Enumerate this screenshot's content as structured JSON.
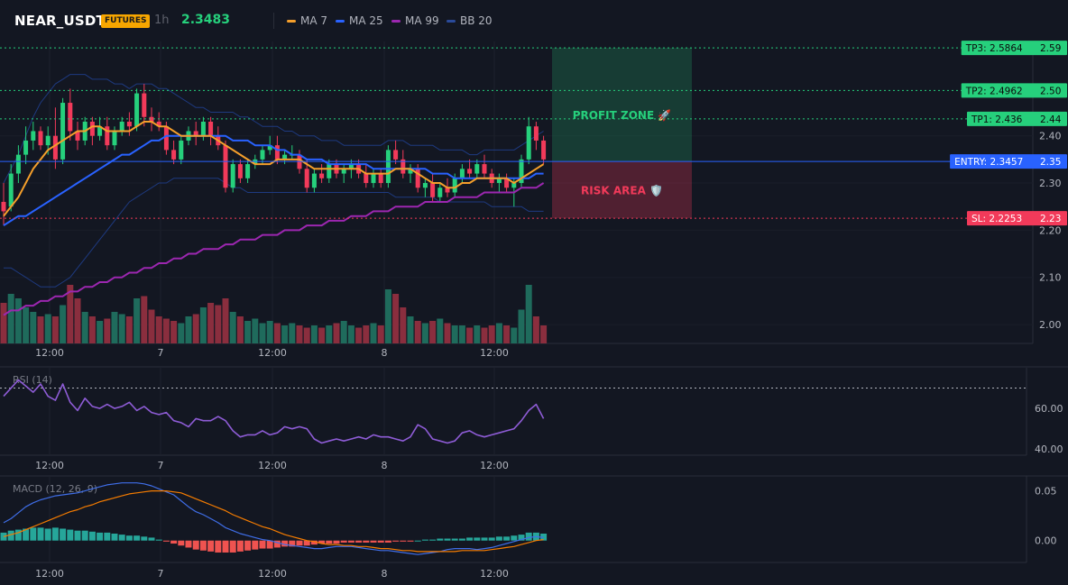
{
  "header": {
    "symbol": "NEAR_USDT",
    "badge": "FUTURES",
    "timeframe": "1h",
    "last_price": "2.3483",
    "legend": [
      {
        "name": "MA 7",
        "color": "#f59f2b"
      },
      {
        "name": "MA 25",
        "color": "#2962ff"
      },
      {
        "name": "MA 99",
        "color": "#9c27b0"
      },
      {
        "name": "BB 20",
        "color": "#2a4a9a"
      }
    ]
  },
  "colors": {
    "bull": "#26d07c",
    "bear": "#f23a5a",
    "vol_bull": "#1f6b5c",
    "vol_bear": "#8a2e3e",
    "ma7": "#f59f2b",
    "ma25": "#2962ff",
    "ma99": "#9c27b0",
    "bb": "#1e3a80",
    "rsi": "#8e5cd6",
    "macd": "#3f6ee8",
    "signal": "#f57c00",
    "hist_pos": "#26a69a",
    "hist_neg": "#ef5350"
  },
  "trade": {
    "profit_label": "PROFIT ZONE 🚀",
    "risk_label": "RISK AREA 🛡️",
    "tp3": {
      "tag": "TP3: 2.5864",
      "axis": "2.59",
      "value": 2.5864
    },
    "tp2": {
      "tag": "TP2: 2.4962",
      "axis": "2.50",
      "value": 2.4962
    },
    "tp1": {
      "tag": "TP1: 2.436",
      "axis": "2.44",
      "value": 2.436
    },
    "entry": {
      "tag": "ENTRY: 2.3457",
      "axis": "2.35",
      "value": 2.3457
    },
    "sl": {
      "tag": "SL: 2.2253",
      "axis": "2.23",
      "value": 2.2253
    }
  },
  "chart_data": [
    {
      "type": "candlestick",
      "title": "NEAR_USDT 1h",
      "x_labels": [
        "12:00",
        "7",
        "12:00",
        "8",
        "12:00"
      ],
      "y_ticks": [
        "2.40",
        "2.30",
        "2.20",
        "2.10",
        "2.00"
      ],
      "y_tick_values": [
        2.4,
        2.3,
        2.2,
        2.1,
        2.0
      ],
      "ylim": [
        1.96,
        2.6
      ],
      "ohlc": [
        [
          2.26,
          2.3,
          2.21,
          2.24
        ],
        [
          2.25,
          2.34,
          2.24,
          2.32
        ],
        [
          2.32,
          2.38,
          2.3,
          2.36
        ],
        [
          2.36,
          2.42,
          2.34,
          2.39
        ],
        [
          2.39,
          2.43,
          2.37,
          2.41
        ],
        [
          2.41,
          2.42,
          2.37,
          2.38
        ],
        [
          2.38,
          2.42,
          2.36,
          2.4
        ],
        [
          2.4,
          2.46,
          2.33,
          2.35
        ],
        [
          2.35,
          2.48,
          2.34,
          2.47
        ],
        [
          2.47,
          2.5,
          2.39,
          2.41
        ],
        [
          2.41,
          2.43,
          2.37,
          2.39
        ],
        [
          2.39,
          2.44,
          2.38,
          2.43
        ],
        [
          2.43,
          2.44,
          2.38,
          2.4
        ],
        [
          2.4,
          2.44,
          2.39,
          2.42
        ],
        [
          2.42,
          2.44,
          2.37,
          2.38
        ],
        [
          2.38,
          2.42,
          2.37,
          2.41
        ],
        [
          2.41,
          2.44,
          2.4,
          2.43
        ],
        [
          2.43,
          2.45,
          2.4,
          2.42
        ],
        [
          2.42,
          2.5,
          2.41,
          2.49
        ],
        [
          2.49,
          2.51,
          2.42,
          2.44
        ],
        [
          2.44,
          2.46,
          2.41,
          2.43
        ],
        [
          2.43,
          2.45,
          2.41,
          2.42
        ],
        [
          2.42,
          2.43,
          2.36,
          2.37
        ],
        [
          2.37,
          2.39,
          2.34,
          2.35
        ],
        [
          2.35,
          2.4,
          2.34,
          2.39
        ],
        [
          2.39,
          2.42,
          2.38,
          2.41
        ],
        [
          2.41,
          2.43,
          2.38,
          2.4
        ],
        [
          2.4,
          2.44,
          2.39,
          2.43
        ],
        [
          2.43,
          2.44,
          2.38,
          2.4
        ],
        [
          2.4,
          2.42,
          2.37,
          2.38
        ],
        [
          2.38,
          2.39,
          2.28,
          2.29
        ],
        [
          2.29,
          2.35,
          2.28,
          2.34
        ],
        [
          2.34,
          2.35,
          2.3,
          2.31
        ],
        [
          2.31,
          2.35,
          2.3,
          2.34
        ],
        [
          2.34,
          2.36,
          2.33,
          2.35
        ],
        [
          2.35,
          2.38,
          2.34,
          2.37
        ],
        [
          2.37,
          2.4,
          2.36,
          2.38
        ],
        [
          2.38,
          2.4,
          2.34,
          2.35
        ],
        [
          2.35,
          2.37,
          2.34,
          2.36
        ],
        [
          2.36,
          2.38,
          2.35,
          2.36
        ],
        [
          2.36,
          2.37,
          2.32,
          2.33
        ],
        [
          2.33,
          2.35,
          2.28,
          2.29
        ],
        [
          2.29,
          2.33,
          2.28,
          2.32
        ],
        [
          2.32,
          2.34,
          2.3,
          2.31
        ],
        [
          2.31,
          2.35,
          2.3,
          2.34
        ],
        [
          2.34,
          2.35,
          2.31,
          2.32
        ],
        [
          2.32,
          2.34,
          2.3,
          2.33
        ],
        [
          2.33,
          2.35,
          2.31,
          2.34
        ],
        [
          2.34,
          2.35,
          2.31,
          2.32
        ],
        [
          2.32,
          2.34,
          2.29,
          2.3
        ],
        [
          2.3,
          2.33,
          2.29,
          2.32
        ],
        [
          2.32,
          2.33,
          2.29,
          2.3
        ],
        [
          2.3,
          2.38,
          2.29,
          2.37
        ],
        [
          2.37,
          2.39,
          2.34,
          2.35
        ],
        [
          2.35,
          2.37,
          2.31,
          2.32
        ],
        [
          2.32,
          2.34,
          2.3,
          2.33
        ],
        [
          2.33,
          2.34,
          2.28,
          2.29
        ],
        [
          2.29,
          2.31,
          2.27,
          2.3
        ],
        [
          2.3,
          2.32,
          2.26,
          2.27
        ],
        [
          2.27,
          2.3,
          2.26,
          2.29
        ],
        [
          2.29,
          2.31,
          2.27,
          2.28
        ],
        [
          2.28,
          2.32,
          2.27,
          2.31
        ],
        [
          2.31,
          2.34,
          2.3,
          2.33
        ],
        [
          2.33,
          2.35,
          2.31,
          2.32
        ],
        [
          2.32,
          2.35,
          2.31,
          2.34
        ],
        [
          2.34,
          2.36,
          2.31,
          2.32
        ],
        [
          2.32,
          2.33,
          2.29,
          2.3
        ],
        [
          2.3,
          2.32,
          2.28,
          2.31
        ],
        [
          2.31,
          2.32,
          2.28,
          2.29
        ],
        [
          2.29,
          2.31,
          2.25,
          2.3
        ],
        [
          2.3,
          2.36,
          2.29,
          2.35
        ],
        [
          2.35,
          2.44,
          2.34,
          2.42
        ],
        [
          2.42,
          2.43,
          2.37,
          2.39
        ],
        [
          2.39,
          2.4,
          2.34,
          2.35
        ]
      ],
      "volume": [
        18,
        22,
        20,
        16,
        14,
        12,
        13,
        12,
        17,
        26,
        20,
        14,
        12,
        10,
        11,
        14,
        13,
        12,
        20,
        21,
        15,
        12,
        11,
        10,
        9,
        12,
        13,
        16,
        18,
        17,
        20,
        14,
        12,
        10,
        11,
        9,
        10,
        9,
        8,
        9,
        8,
        7,
        8,
        7,
        8,
        9,
        10,
        8,
        7,
        8,
        9,
        8,
        24,
        22,
        16,
        12,
        10,
        9,
        10,
        11,
        9,
        8,
        8,
        7,
        8,
        7,
        8,
        9,
        8,
        7,
        15,
        26,
        12,
        8
      ],
      "ma7": [
        2.23,
        2.25,
        2.27,
        2.3,
        2.33,
        2.35,
        2.37,
        2.38,
        2.39,
        2.4,
        2.41,
        2.41,
        2.42,
        2.42,
        2.41,
        2.41,
        2.41,
        2.41,
        2.42,
        2.43,
        2.43,
        2.42,
        2.42,
        2.41,
        2.4,
        2.4,
        2.4,
        2.4,
        2.4,
        2.39,
        2.38,
        2.37,
        2.36,
        2.35,
        2.34,
        2.34,
        2.34,
        2.35,
        2.35,
        2.35,
        2.35,
        2.34,
        2.33,
        2.33,
        2.33,
        2.33,
        2.33,
        2.33,
        2.33,
        2.32,
        2.32,
        2.32,
        2.32,
        2.33,
        2.33,
        2.33,
        2.32,
        2.31,
        2.3,
        2.3,
        2.29,
        2.29,
        2.3,
        2.3,
        2.31,
        2.31,
        2.31,
        2.31,
        2.31,
        2.3,
        2.31,
        2.32,
        2.33,
        2.34
      ],
      "ma25": [
        2.21,
        2.22,
        2.23,
        2.23,
        2.24,
        2.25,
        2.26,
        2.27,
        2.28,
        2.29,
        2.3,
        2.31,
        2.32,
        2.33,
        2.34,
        2.35,
        2.36,
        2.36,
        2.37,
        2.38,
        2.39,
        2.39,
        2.4,
        2.4,
        2.4,
        2.4,
        2.4,
        2.4,
        2.4,
        2.4,
        2.4,
        2.39,
        2.39,
        2.39,
        2.38,
        2.38,
        2.38,
        2.37,
        2.37,
        2.36,
        2.36,
        2.35,
        2.35,
        2.35,
        2.34,
        2.34,
        2.34,
        2.34,
        2.34,
        2.34,
        2.33,
        2.33,
        2.33,
        2.33,
        2.33,
        2.33,
        2.33,
        2.33,
        2.32,
        2.32,
        2.32,
        2.31,
        2.31,
        2.31,
        2.31,
        2.31,
        2.31,
        2.31,
        2.31,
        2.31,
        2.31,
        2.31,
        2.32,
        2.32
      ],
      "ma99": [
        2.02,
        2.03,
        2.03,
        2.04,
        2.04,
        2.05,
        2.05,
        2.06,
        2.06,
        2.07,
        2.07,
        2.08,
        2.08,
        2.09,
        2.09,
        2.1,
        2.1,
        2.11,
        2.11,
        2.12,
        2.12,
        2.13,
        2.13,
        2.14,
        2.14,
        2.15,
        2.15,
        2.16,
        2.16,
        2.16,
        2.17,
        2.17,
        2.18,
        2.18,
        2.18,
        2.19,
        2.19,
        2.19,
        2.2,
        2.2,
        2.2,
        2.21,
        2.21,
        2.21,
        2.22,
        2.22,
        2.22,
        2.23,
        2.23,
        2.23,
        2.24,
        2.24,
        2.24,
        2.25,
        2.25,
        2.25,
        2.25,
        2.26,
        2.26,
        2.26,
        2.26,
        2.27,
        2.27,
        2.27,
        2.27,
        2.28,
        2.28,
        2.28,
        2.28,
        2.28,
        2.29,
        2.29,
        2.29,
        2.3
      ],
      "bb_upper": [
        2.3,
        2.33,
        2.36,
        2.4,
        2.44,
        2.47,
        2.49,
        2.51,
        2.52,
        2.53,
        2.53,
        2.53,
        2.52,
        2.52,
        2.52,
        2.51,
        2.51,
        2.5,
        2.51,
        2.51,
        2.51,
        2.5,
        2.5,
        2.49,
        2.48,
        2.47,
        2.46,
        2.46,
        2.45,
        2.45,
        2.45,
        2.45,
        2.44,
        2.44,
        2.43,
        2.42,
        2.42,
        2.42,
        2.41,
        2.41,
        2.4,
        2.4,
        2.4,
        2.39,
        2.39,
        2.39,
        2.38,
        2.38,
        2.38,
        2.38,
        2.38,
        2.38,
        2.39,
        2.39,
        2.39,
        2.38,
        2.38,
        2.38,
        2.38,
        2.37,
        2.37,
        2.37,
        2.37,
        2.36,
        2.36,
        2.37,
        2.37,
        2.37,
        2.37,
        2.37,
        2.38,
        2.39,
        2.4,
        2.41
      ],
      "bb_lower": [
        2.12,
        2.12,
        2.11,
        2.1,
        2.09,
        2.08,
        2.08,
        2.08,
        2.09,
        2.1,
        2.12,
        2.14,
        2.16,
        2.18,
        2.2,
        2.22,
        2.24,
        2.26,
        2.27,
        2.28,
        2.29,
        2.3,
        2.3,
        2.31,
        2.31,
        2.31,
        2.31,
        2.31,
        2.31,
        2.31,
        2.3,
        2.29,
        2.29,
        2.28,
        2.28,
        2.28,
        2.28,
        2.28,
        2.28,
        2.28,
        2.28,
        2.28,
        2.28,
        2.28,
        2.28,
        2.28,
        2.28,
        2.28,
        2.28,
        2.28,
        2.28,
        2.28,
        2.28,
        2.27,
        2.27,
        2.27,
        2.27,
        2.27,
        2.27,
        2.26,
        2.26,
        2.26,
        2.26,
        2.26,
        2.26,
        2.26,
        2.25,
        2.25,
        2.25,
        2.25,
        2.25,
        2.24,
        2.24,
        2.24
      ]
    },
    {
      "type": "line",
      "title": "RSI (14)",
      "x_labels": [
        "12:00",
        "7",
        "12:00",
        "8",
        "12:00"
      ],
      "y_ticks": [
        "60.00",
        "40.00"
      ],
      "y_tick_values": [
        60,
        40
      ],
      "ylim": [
        37,
        80
      ],
      "overbought": 70,
      "values": [
        66,
        70,
        74,
        71,
        68,
        72,
        66,
        64,
        72,
        63,
        59,
        65,
        61,
        60,
        62,
        60,
        61,
        63,
        59,
        61,
        58,
        57,
        58,
        54,
        53,
        51,
        55,
        54,
        54,
        56,
        54,
        49,
        46,
        47,
        47,
        49,
        47,
        48,
        51,
        50,
        51,
        50,
        45,
        43,
        44,
        45,
        44,
        45,
        46,
        45,
        47,
        46,
        46,
        45,
        44,
        46,
        52,
        50,
        45,
        44,
        43,
        44,
        48,
        49,
        47,
        46,
        47,
        48,
        49,
        50,
        54,
        59,
        62,
        55
      ]
    },
    {
      "type": "line",
      "title": "MACD (12, 26, 9)",
      "x_labels": [
        "12:00",
        "7",
        "12:00",
        "8",
        "12:00"
      ],
      "y_ticks": [
        "0.05",
        "0.00"
      ],
      "y_tick_values": [
        0.05,
        0.0
      ],
      "ylim": [
        -0.022,
        0.065
      ],
      "macd": [
        0.018,
        0.022,
        0.028,
        0.034,
        0.038,
        0.041,
        0.043,
        0.045,
        0.046,
        0.047,
        0.048,
        0.05,
        0.052,
        0.054,
        0.056,
        0.057,
        0.058,
        0.058,
        0.058,
        0.057,
        0.055,
        0.052,
        0.049,
        0.046,
        0.04,
        0.034,
        0.029,
        0.026,
        0.022,
        0.018,
        0.013,
        0.01,
        0.007,
        0.005,
        0.003,
        0.001,
        0.0,
        -0.002,
        -0.004,
        -0.005,
        -0.006,
        -0.007,
        -0.008,
        -0.008,
        -0.007,
        -0.006,
        -0.006,
        -0.006,
        -0.007,
        -0.008,
        -0.009,
        -0.01,
        -0.01,
        -0.011,
        -0.012,
        -0.013,
        -0.014,
        -0.013,
        -0.012,
        -0.011,
        -0.009,
        -0.008,
        -0.008,
        -0.008,
        -0.009,
        -0.008,
        -0.007,
        -0.005,
        -0.003,
        -0.001,
        0.001,
        0.003,
        0.004,
        0.003
      ],
      "signal": [
        0.004,
        0.006,
        0.008,
        0.011,
        0.014,
        0.017,
        0.02,
        0.023,
        0.026,
        0.029,
        0.031,
        0.034,
        0.036,
        0.039,
        0.041,
        0.043,
        0.045,
        0.047,
        0.048,
        0.049,
        0.05,
        0.05,
        0.05,
        0.049,
        0.048,
        0.045,
        0.042,
        0.039,
        0.036,
        0.033,
        0.03,
        0.026,
        0.023,
        0.02,
        0.017,
        0.014,
        0.012,
        0.009,
        0.006,
        0.004,
        0.002,
        0.0,
        -0.001,
        -0.003,
        -0.004,
        -0.004,
        -0.005,
        -0.005,
        -0.006,
        -0.006,
        -0.007,
        -0.008,
        -0.008,
        -0.009,
        -0.01,
        -0.01,
        -0.011,
        -0.011,
        -0.011,
        -0.011,
        -0.011,
        -0.011,
        -0.01,
        -0.01,
        -0.01,
        -0.01,
        -0.009,
        -0.008,
        -0.007,
        -0.006,
        -0.004,
        -0.002,
        0.0,
        0.001
      ],
      "histogram": [
        0.008,
        0.01,
        0.011,
        0.012,
        0.013,
        0.013,
        0.012,
        0.013,
        0.012,
        0.011,
        0.01,
        0.01,
        0.009,
        0.008,
        0.008,
        0.007,
        0.006,
        0.005,
        0.005,
        0.004,
        0.003,
        0.001,
        -0.001,
        -0.003,
        -0.005,
        -0.007,
        -0.009,
        -0.01,
        -0.011,
        -0.012,
        -0.012,
        -0.012,
        -0.011,
        -0.01,
        -0.009,
        -0.008,
        -0.008,
        -0.007,
        -0.006,
        -0.006,
        -0.005,
        -0.005,
        -0.004,
        -0.003,
        -0.003,
        -0.003,
        -0.002,
        -0.002,
        -0.002,
        -0.002,
        -0.002,
        -0.002,
        -0.002,
        -0.001,
        -0.001,
        -0.001,
        0.0,
        0.001,
        0.001,
        0.002,
        0.002,
        0.002,
        0.002,
        0.003,
        0.003,
        0.003,
        0.003,
        0.004,
        0.004,
        0.005,
        0.006,
        0.008,
        0.008,
        0.007
      ]
    }
  ]
}
